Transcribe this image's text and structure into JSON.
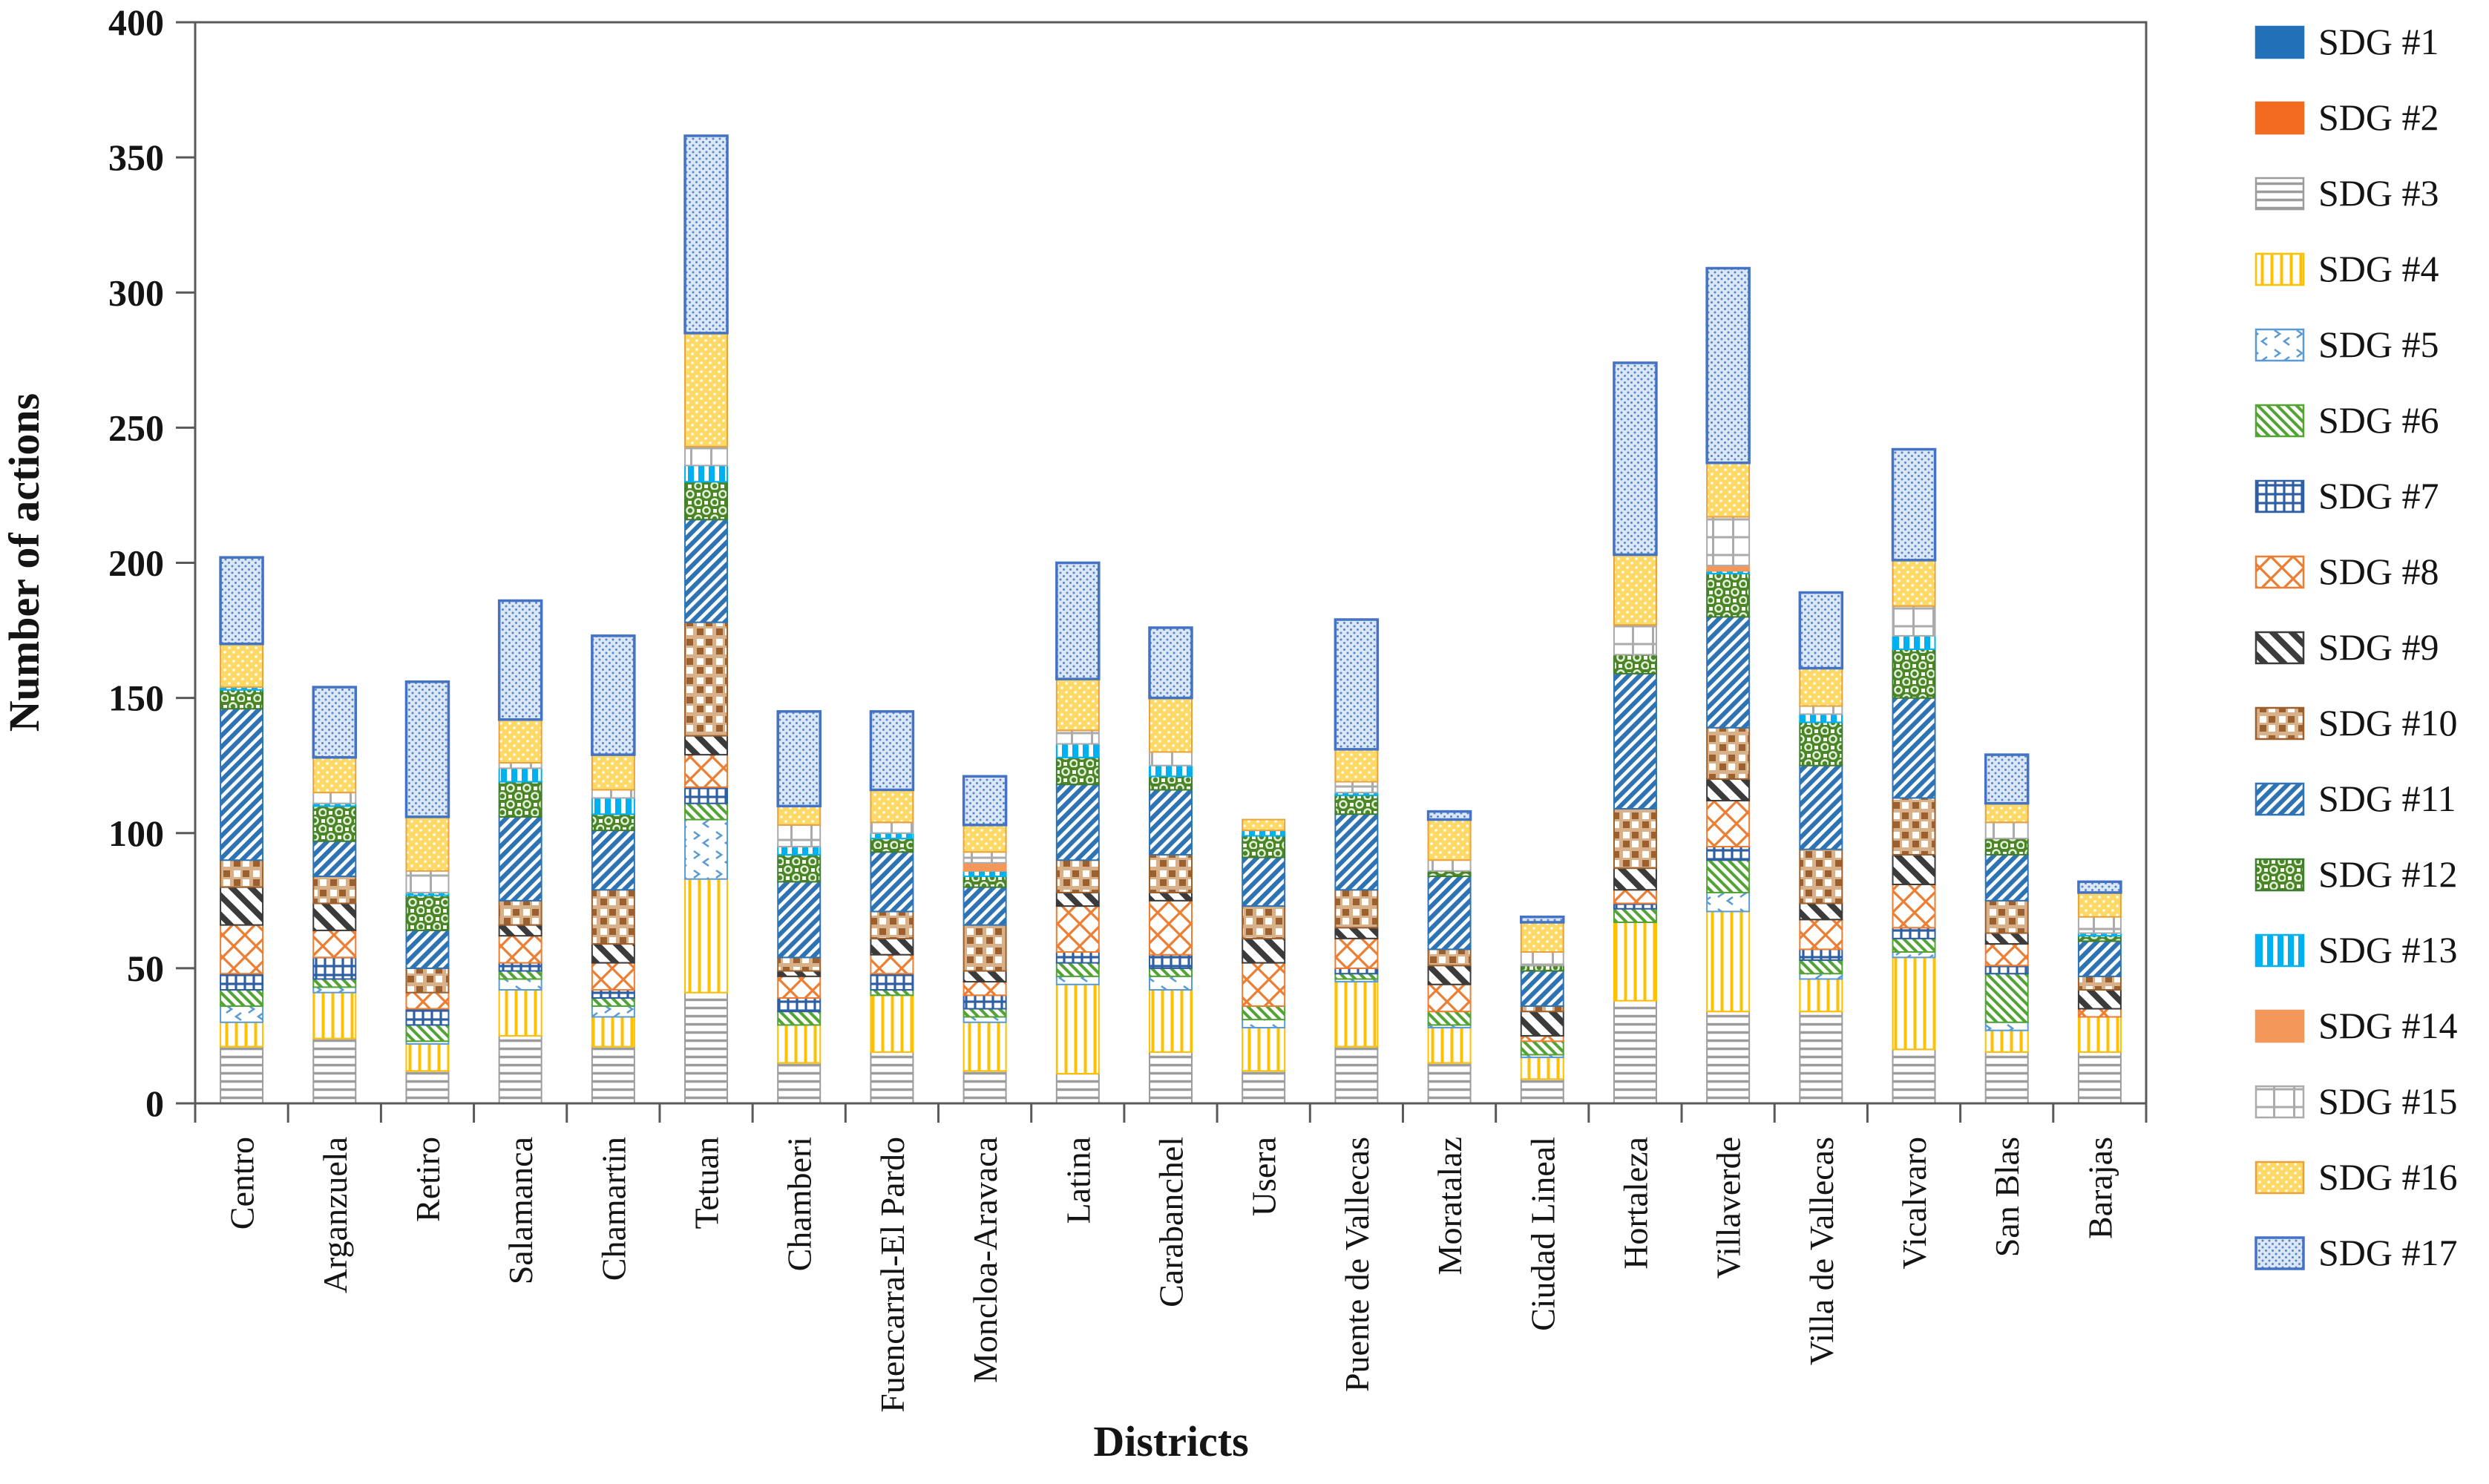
{
  "figure": {
    "background": "#FFFFFF",
    "frame_color": "#595959"
  },
  "chart_data": {
    "type": "bar",
    "stacked": true,
    "title": "",
    "xlabel": "Districts",
    "ylabel": "Number of actions",
    "ylim": [
      0,
      400
    ],
    "ytick_step": 50,
    "ytick_labels": [
      "0",
      "50",
      "100",
      "150",
      "200",
      "250",
      "300",
      "350",
      "400"
    ],
    "grid": false,
    "legend_position": "right",
    "categories": [
      "Centro",
      "Arganzuela",
      "Retiro",
      "Salamanca",
      "Chamartin",
      "Tetuan",
      "Chamberi",
      "Fuencarral-El Pardo",
      "Moncloa-Aravaca",
      "Latina",
      "Carabanchel",
      "Usera",
      "Puente de Vallecas",
      "Moratalaz",
      "Ciudad Lineal",
      "Hortaleza",
      "Villaverde",
      "Villa de Vallecas",
      "Vicalvaro",
      "San Blas",
      "Barajas"
    ],
    "totals": [
      202,
      154,
      156,
      186,
      173,
      358,
      145,
      145,
      121,
      200,
      176,
      105,
      179,
      108,
      69,
      274,
      309,
      189,
      242,
      129,
      82
    ],
    "series": [
      {
        "name": "SDG #1",
        "color": "#2271B8",
        "pattern": "solid-blue",
        "values": [
          0,
          0,
          0,
          0,
          0,
          0,
          0,
          0,
          0,
          0,
          0,
          0,
          0,
          0,
          0,
          0,
          0,
          0,
          0,
          0,
          0
        ]
      },
      {
        "name": "SDG #2",
        "color": "#F26B21",
        "pattern": "solid-orange",
        "values": [
          0,
          0,
          0,
          0,
          0,
          0,
          0,
          0,
          0,
          0,
          0,
          0,
          0,
          0,
          0,
          0,
          0,
          0,
          0,
          0,
          0
        ]
      },
      {
        "name": "SDG #3",
        "color": "#9C9C9C",
        "pattern": "gray-horizontal-lines",
        "values": [
          21,
          24,
          12,
          25,
          21,
          41,
          15,
          19,
          12,
          11,
          19,
          12,
          21,
          15,
          9,
          38,
          34,
          34,
          20,
          19,
          19
        ]
      },
      {
        "name": "SDG #4",
        "color": "#FFC000",
        "pattern": "gold-vertical-lines",
        "values": [
          9,
          17,
          10,
          17,
          11,
          42,
          14,
          21,
          18,
          33,
          23,
          16,
          24,
          13,
          8,
          29,
          37,
          12,
          34,
          8,
          13
        ]
      },
      {
        "name": "SDG #5",
        "color": "#5B9BD5",
        "pattern": "lightblue-chevrons",
        "values": [
          6,
          2,
          1,
          4,
          4,
          22,
          0,
          0,
          2,
          3,
          5,
          3,
          1,
          1,
          1,
          0,
          7,
          2,
          2,
          3,
          0
        ]
      },
      {
        "name": "SDG #6",
        "color": "#53A335",
        "pattern": "green-diagonal",
        "values": [
          6,
          3,
          6,
          3,
          3,
          6,
          5,
          2,
          3,
          5,
          3,
          5,
          2,
          5,
          5,
          5,
          12,
          5,
          5,
          18,
          0
        ]
      },
      {
        "name": "SDG #7",
        "color": "#2E5FA3",
        "pattern": "navy-grid",
        "values": [
          6,
          8,
          6,
          3,
          3,
          6,
          5,
          6,
          5,
          4,
          5,
          0,
          2,
          0,
          0,
          2,
          5,
          4,
          4,
          3,
          0
        ]
      },
      {
        "name": "SDG #8",
        "color": "#ED7D31",
        "pattern": "orange-crosshatch",
        "values": [
          18,
          10,
          6,
          10,
          10,
          12,
          8,
          7,
          5,
          17,
          20,
          16,
          11,
          10,
          2,
          5,
          17,
          11,
          16,
          8,
          3
        ]
      },
      {
        "name": "SDG #9",
        "color": "#3B3B3B",
        "pattern": "dark-diagonal",
        "values": [
          14,
          10,
          0,
          4,
          7,
          7,
          2,
          6,
          4,
          5,
          3,
          9,
          4,
          7,
          9,
          8,
          8,
          6,
          11,
          4,
          7
        ]
      },
      {
        "name": "SDG #10",
        "color": "#9C5F2E",
        "pattern": "brown-checker",
        "values": [
          10,
          10,
          9,
          9,
          20,
          42,
          5,
          10,
          17,
          12,
          14,
          12,
          14,
          6,
          2,
          22,
          19,
          20,
          21,
          12,
          5
        ]
      },
      {
        "name": "SDG #11",
        "color": "#2E74B5",
        "pattern": "blue-diagonal",
        "values": [
          56,
          13,
          14,
          31,
          22,
          38,
          28,
          22,
          14,
          28,
          24,
          18,
          28,
          27,
          13,
          50,
          41,
          31,
          37,
          17,
          13
        ]
      },
      {
        "name": "SDG #12",
        "color": "#3E7D32",
        "pattern": "green-circles",
        "values": [
          7,
          13,
          13,
          13,
          6,
          14,
          10,
          5,
          4,
          10,
          5,
          8,
          7,
          2,
          2,
          7,
          16,
          16,
          18,
          6,
          2
        ]
      },
      {
        "name": "SDG #13",
        "color": "#00B0F0",
        "pattern": "cyan-vertical-bars",
        "values": [
          1,
          1,
          1,
          5,
          6,
          6,
          3,
          2,
          2,
          5,
          4,
          2,
          1,
          0,
          0,
          0,
          1,
          3,
          5,
          0,
          1
        ]
      },
      {
        "name": "SDG #14",
        "color": "#F4975A",
        "pattern": "solid-light-orange",
        "values": [
          0,
          0,
          0,
          0,
          0,
          0,
          0,
          0,
          3,
          0,
          0,
          0,
          0,
          0,
          0,
          0,
          2,
          0,
          0,
          0,
          0
        ]
      },
      {
        "name": "SDG #15",
        "color": "#ABABAB",
        "pattern": "lightgray-grid",
        "values": [
          0,
          4,
          8,
          2,
          3,
          7,
          8,
          4,
          4,
          5,
          5,
          0,
          4,
          4,
          5,
          11,
          18,
          3,
          11,
          6,
          6
        ]
      },
      {
        "name": "SDG #16",
        "color": "#E8A33D",
        "pattern": "yellow-dotted",
        "values": [
          16,
          13,
          20,
          16,
          13,
          42,
          7,
          12,
          10,
          19,
          20,
          4,
          12,
          15,
          11,
          26,
          20,
          14,
          17,
          7,
          9
        ]
      },
      {
        "name": "SDG #17",
        "color": "#4472C4",
        "pattern": "lightblue-dot-fill",
        "values": [
          32,
          26,
          50,
          44,
          44,
          73,
          35,
          29,
          18,
          43,
          26,
          0,
          48,
          3,
          2,
          71,
          72,
          28,
          41,
          18,
          4
        ]
      }
    ]
  }
}
